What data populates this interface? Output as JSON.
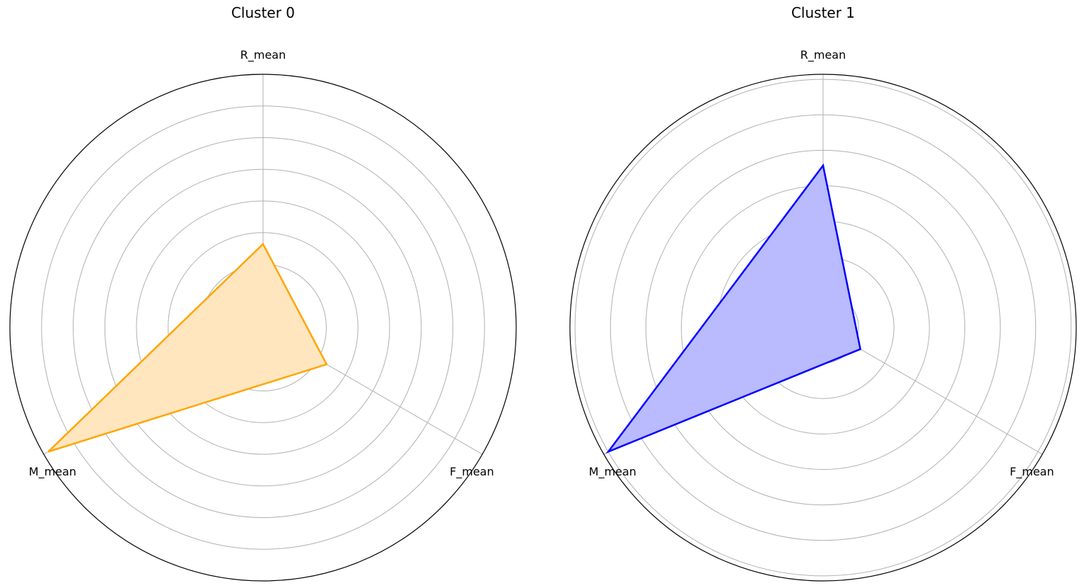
{
  "chart_data": [
    {
      "type": "radar",
      "title": "Cluster 0",
      "axes": [
        "R_mean",
        "F_mean",
        "M_mean"
      ],
      "values": [
        0.33,
        0.29,
        0.98
      ],
      "rlim": [
        0,
        1
      ],
      "rings": [
        0.125,
        0.25,
        0.375,
        0.5,
        0.625,
        0.75,
        0.875,
        1.0
      ],
      "grid": true,
      "line_color": "#FFA500",
      "fill_color": "#FFE6BF"
    },
    {
      "type": "radar",
      "title": "Cluster 1",
      "axes": [
        "R_mean",
        "F_mean",
        "M_mean"
      ],
      "values": [
        0.64,
        0.17,
        0.98
      ],
      "rlim": [
        0,
        1
      ],
      "rings": [
        0.14,
        0.28,
        0.42,
        0.56,
        0.7,
        0.84,
        0.98
      ],
      "grid": true,
      "line_color": "#0000FF",
      "fill_color": "#BABAFF"
    }
  ]
}
